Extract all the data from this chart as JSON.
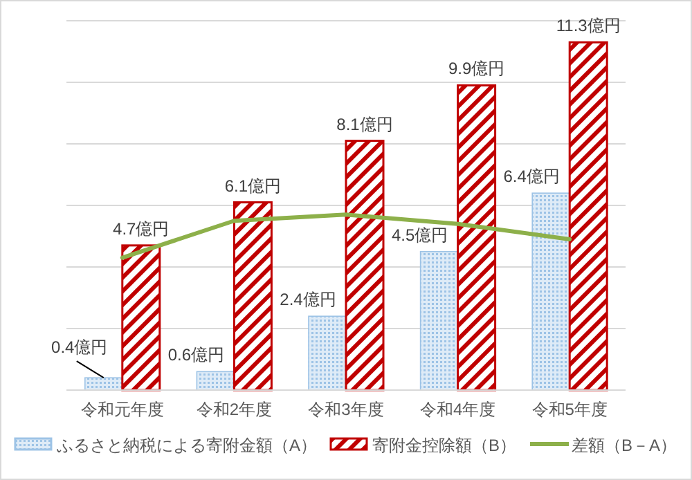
{
  "chart_data": {
    "type": "bar",
    "categories": [
      "令和元年度",
      "令和2年度",
      "令和3年度",
      "令和4年度",
      "令和5年度"
    ],
    "series": [
      {
        "name": "ふるさと納税による寄附金額（A）",
        "color": "#9dc3e6",
        "values": [
          0.4,
          0.6,
          2.4,
          4.5,
          6.4
        ],
        "value_labels": [
          "0.4億円",
          "0.6億円",
          "2.4億円",
          "4.5億円",
          "6.4億円"
        ]
      },
      {
        "name": "寄附金控除額（B）",
        "color": "#c00000",
        "values": [
          4.7,
          6.1,
          8.1,
          9.9,
          11.3
        ],
        "value_labels": [
          "4.7億円",
          "6.1億円",
          "8.1億円",
          "9.9億円",
          "11.3億円"
        ]
      },
      {
        "name": "差額（B－A）",
        "type": "line",
        "color": "#8db04a",
        "values": [
          4.3,
          5.5,
          5.7,
          5.4,
          4.9
        ]
      }
    ],
    "ylim": [
      0,
      12
    ],
    "yticks": [
      {
        "value": 0,
        "label": null
      },
      {
        "value": 2,
        "label": null
      },
      {
        "value": 4,
        "label": null
      },
      {
        "value": 6,
        "label": null
      },
      {
        "value": 8,
        "label": null
      },
      {
        "value": 10,
        "label": null
      },
      {
        "value": 12,
        "label": null
      }
    ],
    "grid": "y",
    "tick_labels": "x",
    "legend": "bottom"
  }
}
